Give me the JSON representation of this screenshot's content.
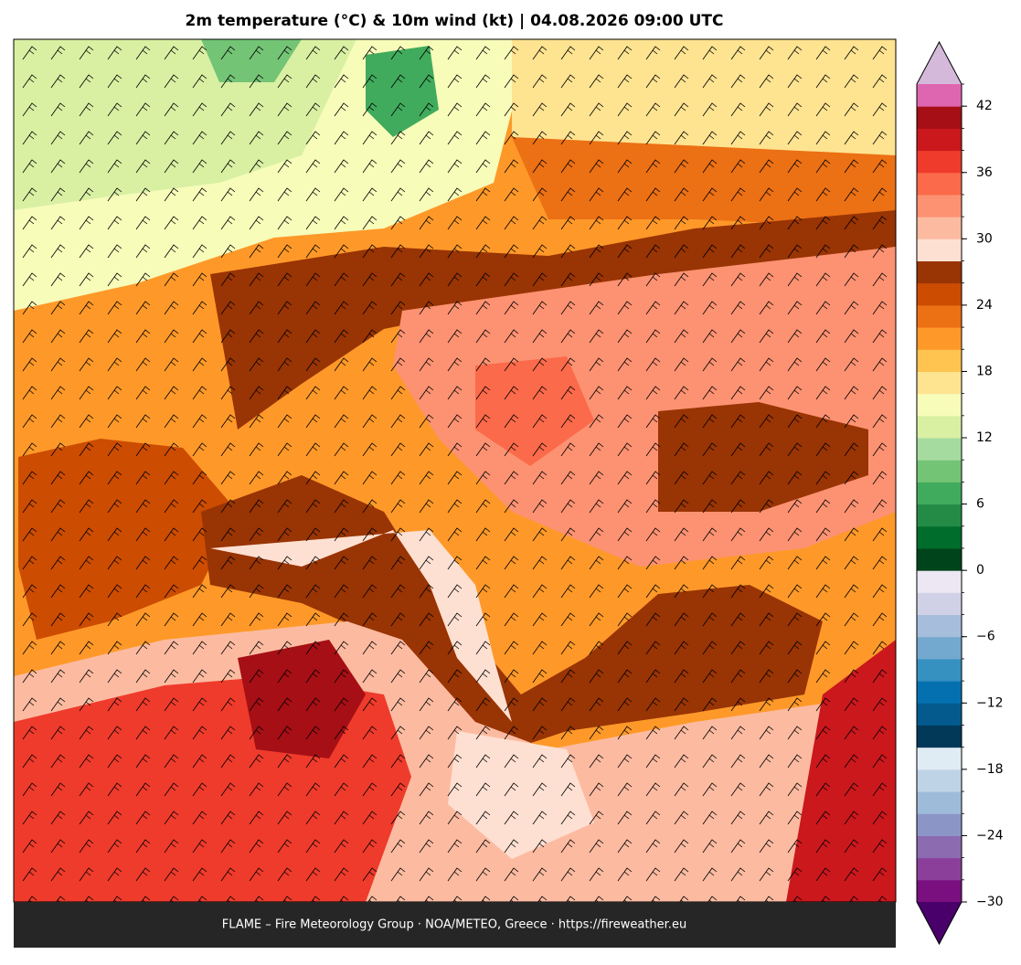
{
  "title": "2m temperature (°C) & 10m wind (kt)  |  04.08.2026 09:00 UTC",
  "footer": "FLAME – Fire Meteorology Group · NOA/METEO, Greece · https://fireweather.eu",
  "colorbar": {
    "bounds": [
      -30,
      -28,
      -26,
      -24,
      -22,
      -20,
      -18,
      -16,
      -14,
      -12,
      -10,
      -8,
      -6,
      -4,
      -2,
      0,
      2,
      4,
      6,
      8,
      10,
      12,
      14,
      16,
      18,
      20,
      22,
      24,
      26,
      28,
      30,
      32,
      34,
      36,
      38,
      40,
      42,
      44
    ],
    "colors": [
      "#7a0f7f",
      "#8b3f9b",
      "#8c6bb1",
      "#8c96c6",
      "#9ebcda",
      "#bfd3e6",
      "#e0ecf4",
      "#023858",
      "#045a8d",
      "#0570b0",
      "#3690c0",
      "#74a9cf",
      "#a6bddb",
      "#d0d1e6",
      "#ece7f2",
      "#00441b",
      "#006d2c",
      "#238b45",
      "#41ab5d",
      "#74c476",
      "#a6dba0",
      "#d9f0a3",
      "#f7fcb9",
      "#fee391",
      "#fec44f",
      "#fe9929",
      "#ec7014",
      "#cc4c02",
      "#993404",
      "#fee0d2",
      "#fcbba1",
      "#fc9272",
      "#fb6a4a",
      "#ef3b2c",
      "#cb181d",
      "#a50f15",
      "#de66b0"
    ],
    "extend_low": "#49006a",
    "extend_high": "#d4b9da",
    "ticks": [
      {
        "value": -30,
        "label": "−30"
      },
      {
        "value": -24,
        "label": "−24"
      },
      {
        "value": -18,
        "label": "−18"
      },
      {
        "value": -12,
        "label": "−12"
      },
      {
        "value": -6,
        "label": "−6"
      },
      0,
      6,
      12,
      18,
      24,
      30,
      36,
      42
    ]
  }
}
